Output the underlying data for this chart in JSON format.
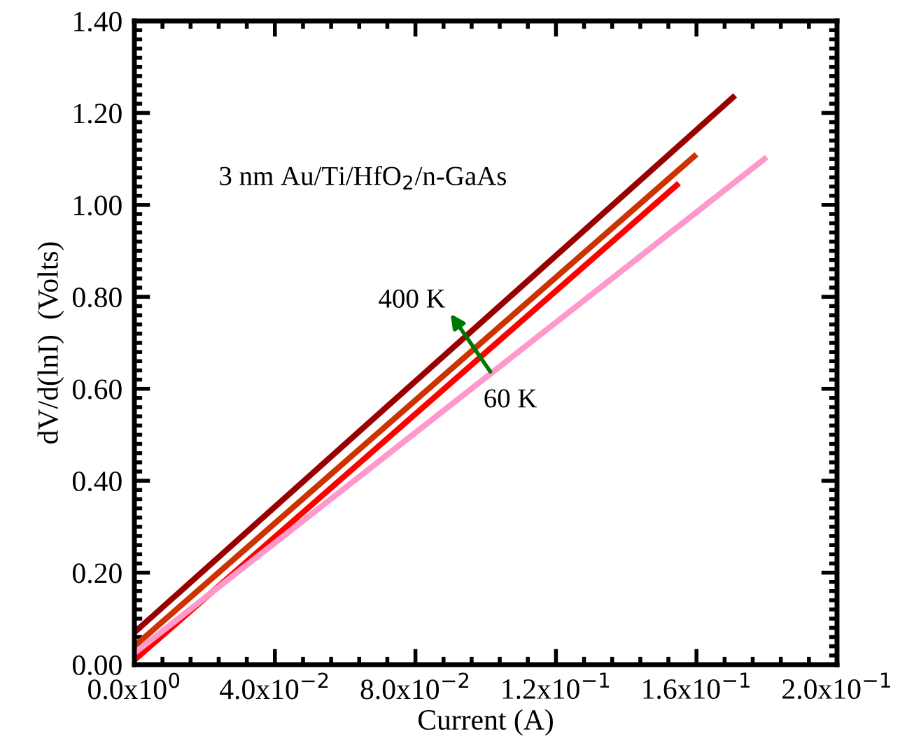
{
  "chart_data": {
    "type": "line",
    "xlabel": "Current (A)",
    "ylabel": "dV/d(lnI)  (Volts)",
    "annotations": [
      "3 nm Au/Ti/HfO$_{2}$/n-GaAs",
      "400 K",
      "60 K"
    ],
    "series": [
      {
        "color": "#990000",
        "x": [
          0,
          0.171
        ],
        "values": [
          0.07,
          1.238
        ]
      },
      {
        "color": "#cc3300",
        "x": [
          0,
          0.16
        ],
        "values": [
          0.04,
          1.11
        ]
      },
      {
        "color": "#ff0000",
        "x": [
          0,
          0.155
        ],
        "values": [
          0.01,
          1.047
        ]
      },
      {
        "color": "#ff99cc",
        "x": [
          0,
          0.18
        ],
        "values": [
          0.025,
          1.104
        ]
      }
    ],
    "xlim": [
      0,
      0.2
    ],
    "xticks": [
      {
        "value": 0,
        "label": "0.0x10$^{0}$"
      },
      {
        "value": 0.04,
        "label": "4.0x10$^{−2}$"
      },
      {
        "value": 0.08,
        "label": "8.0x10$^{−2}$"
      },
      {
        "value": 0.12,
        "label": "1.2x10$^{−1}$"
      },
      {
        "value": 0.16,
        "label": "1.6x10$^{−1}$"
      },
      {
        "value": 0.2,
        "label": "2.0x10$^{−1}$"
      }
    ],
    "ylim": [
      0,
      1.4
    ],
    "yticks": [
      {
        "value": 0,
        "label": "0.00"
      },
      {
        "value": 0.2,
        "label": "0.20"
      },
      {
        "value": 0.4,
        "label": "0.40"
      },
      {
        "value": 0.6,
        "label": "0.60"
      },
      {
        "value": 0.8,
        "label": "0.80"
      },
      {
        "value": 1.0,
        "label": "1.00"
      },
      {
        "value": 1.2,
        "label": "1.20"
      },
      {
        "value": 1.4,
        "label": "1.40"
      }
    ],
    "grid": false,
    "legend": false,
    "marker": "none",
    "line_style": "solid"
  }
}
